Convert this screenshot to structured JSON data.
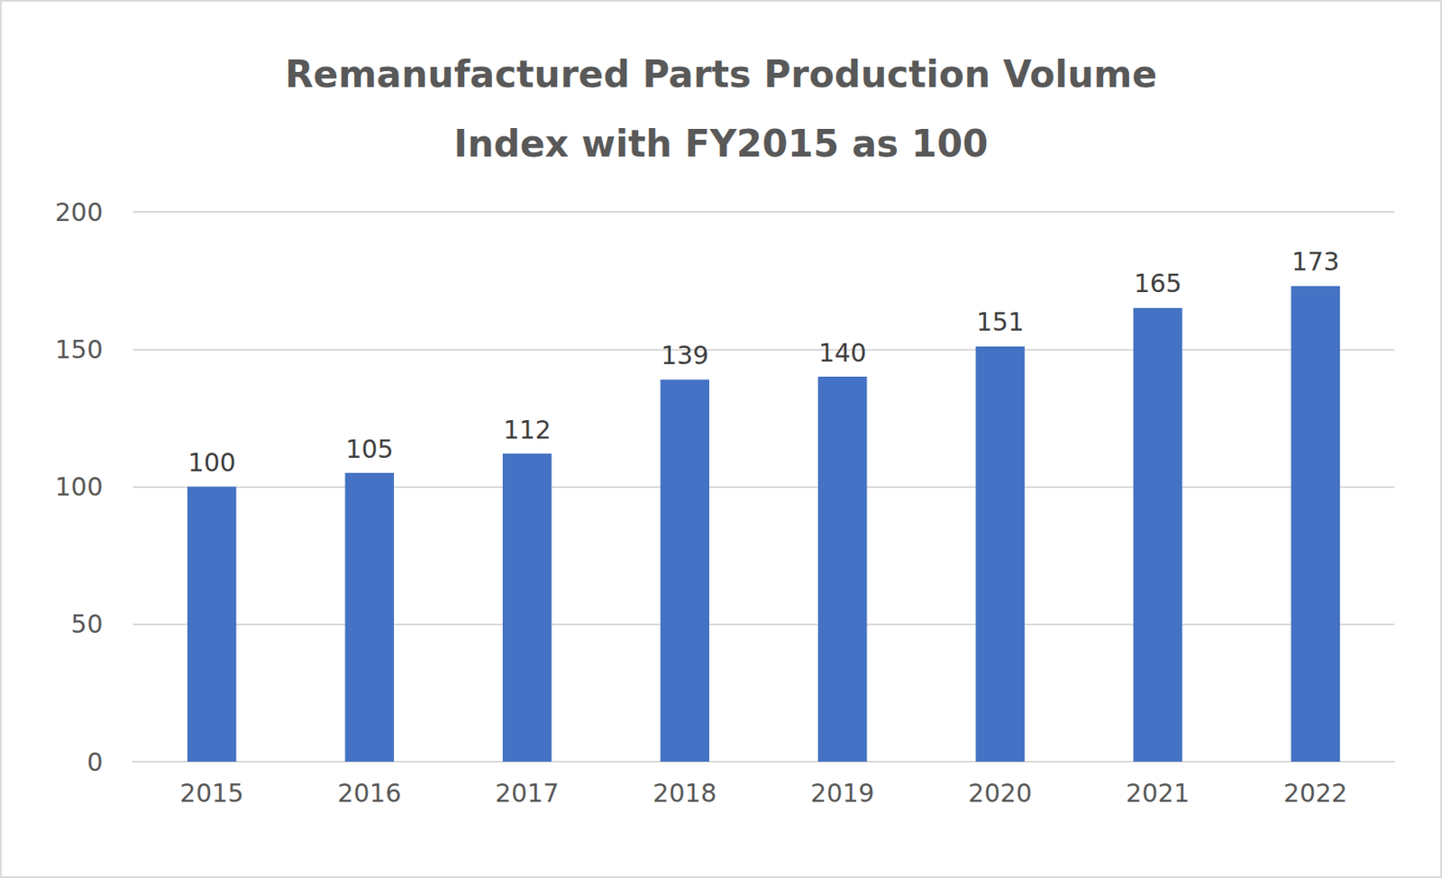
{
  "chart_data": {
    "type": "bar",
    "title": "Remanufactured Parts Production Volume\nIndex with FY2015 as 100",
    "categories": [
      "2015",
      "2016",
      "2017",
      "2018",
      "2019",
      "2020",
      "2021",
      "2022"
    ],
    "values": [
      100,
      105,
      112,
      139,
      140,
      151,
      165,
      173
    ],
    "color": "#4472c4",
    "ylim": [
      0,
      200
    ],
    "yticks": [
      0,
      50,
      100,
      150,
      200
    ],
    "grid": true,
    "data_labels": true
  }
}
